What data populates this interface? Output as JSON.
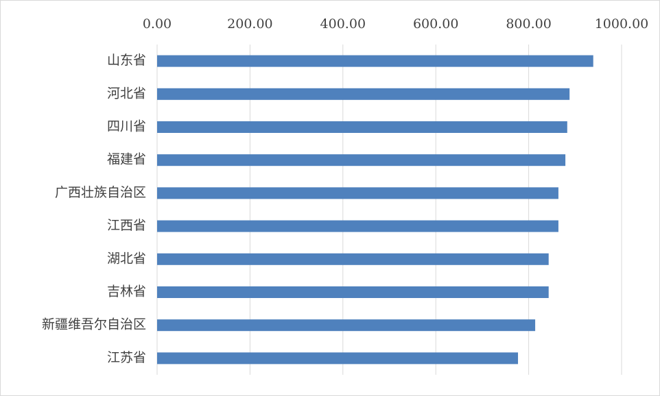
{
  "chart_data": {
    "type": "bar",
    "orientation": "horizontal",
    "categories": [
      "山东省",
      "河北省",
      "四川省",
      "福建省",
      "广西壮族自治区",
      "江西省",
      "湖北省",
      "吉林省",
      "新疆维吾尔自治区",
      "江苏省"
    ],
    "values": [
      939,
      888,
      883,
      879,
      864,
      864,
      843,
      843,
      814,
      777
    ],
    "color": "#4f81bd",
    "xlim": [
      0,
      1000
    ],
    "xticks": [
      {
        "value": 0,
        "label": "0.00"
      },
      {
        "value": 200,
        "label": "200.00"
      },
      {
        "value": 400,
        "label": "400.00"
      },
      {
        "value": 600,
        "label": "600.00"
      },
      {
        "value": 800,
        "label": "800.00"
      },
      {
        "value": 1000,
        "label": "1000.00"
      }
    ],
    "grid": true
  }
}
